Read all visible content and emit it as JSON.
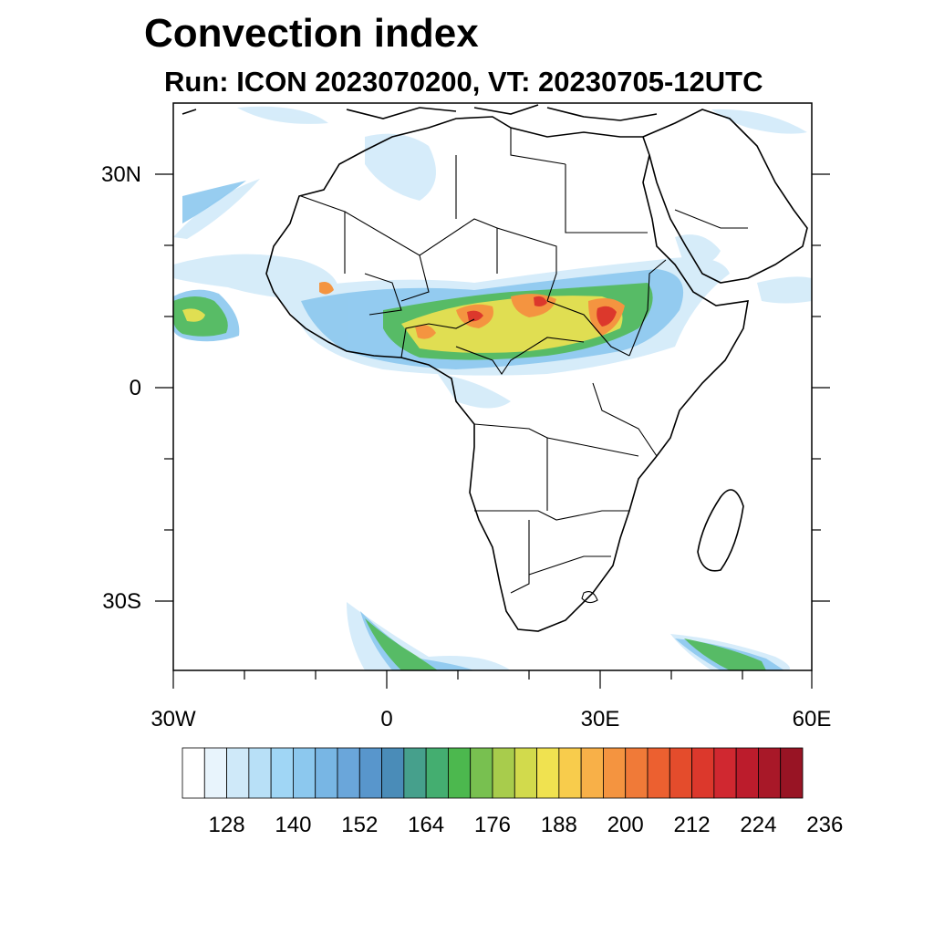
{
  "title": "Convection index",
  "subtitle": "Run: ICON 2023070200,  VT: 20230705-12UTC",
  "axes": {
    "lat_labels": [
      "30N",
      "0",
      "30S"
    ],
    "lon_labels": [
      "30W",
      "0",
      "30E",
      "60E"
    ]
  },
  "colorbar": {
    "labels": [
      "128",
      "140",
      "152",
      "164",
      "176",
      "188",
      "200",
      "212",
      "224",
      "236"
    ],
    "colors": [
      "#ffffff",
      "#e8f4fc",
      "#cfe9f9",
      "#b8e0f7",
      "#a0d6f5",
      "#8cc8ee",
      "#78b6e4",
      "#6aa6da",
      "#5896cc",
      "#4a8cb8",
      "#46a08c",
      "#44ae70",
      "#4cb84e",
      "#78c050",
      "#a8cc4c",
      "#d2da4c",
      "#f0e250",
      "#f8cc4c",
      "#f8b048",
      "#f49440",
      "#f07a38",
      "#ec6030",
      "#e44c2c",
      "#dc382c",
      "#d02830",
      "#bc1c2c",
      "#a81828",
      "#981424"
    ]
  }
}
